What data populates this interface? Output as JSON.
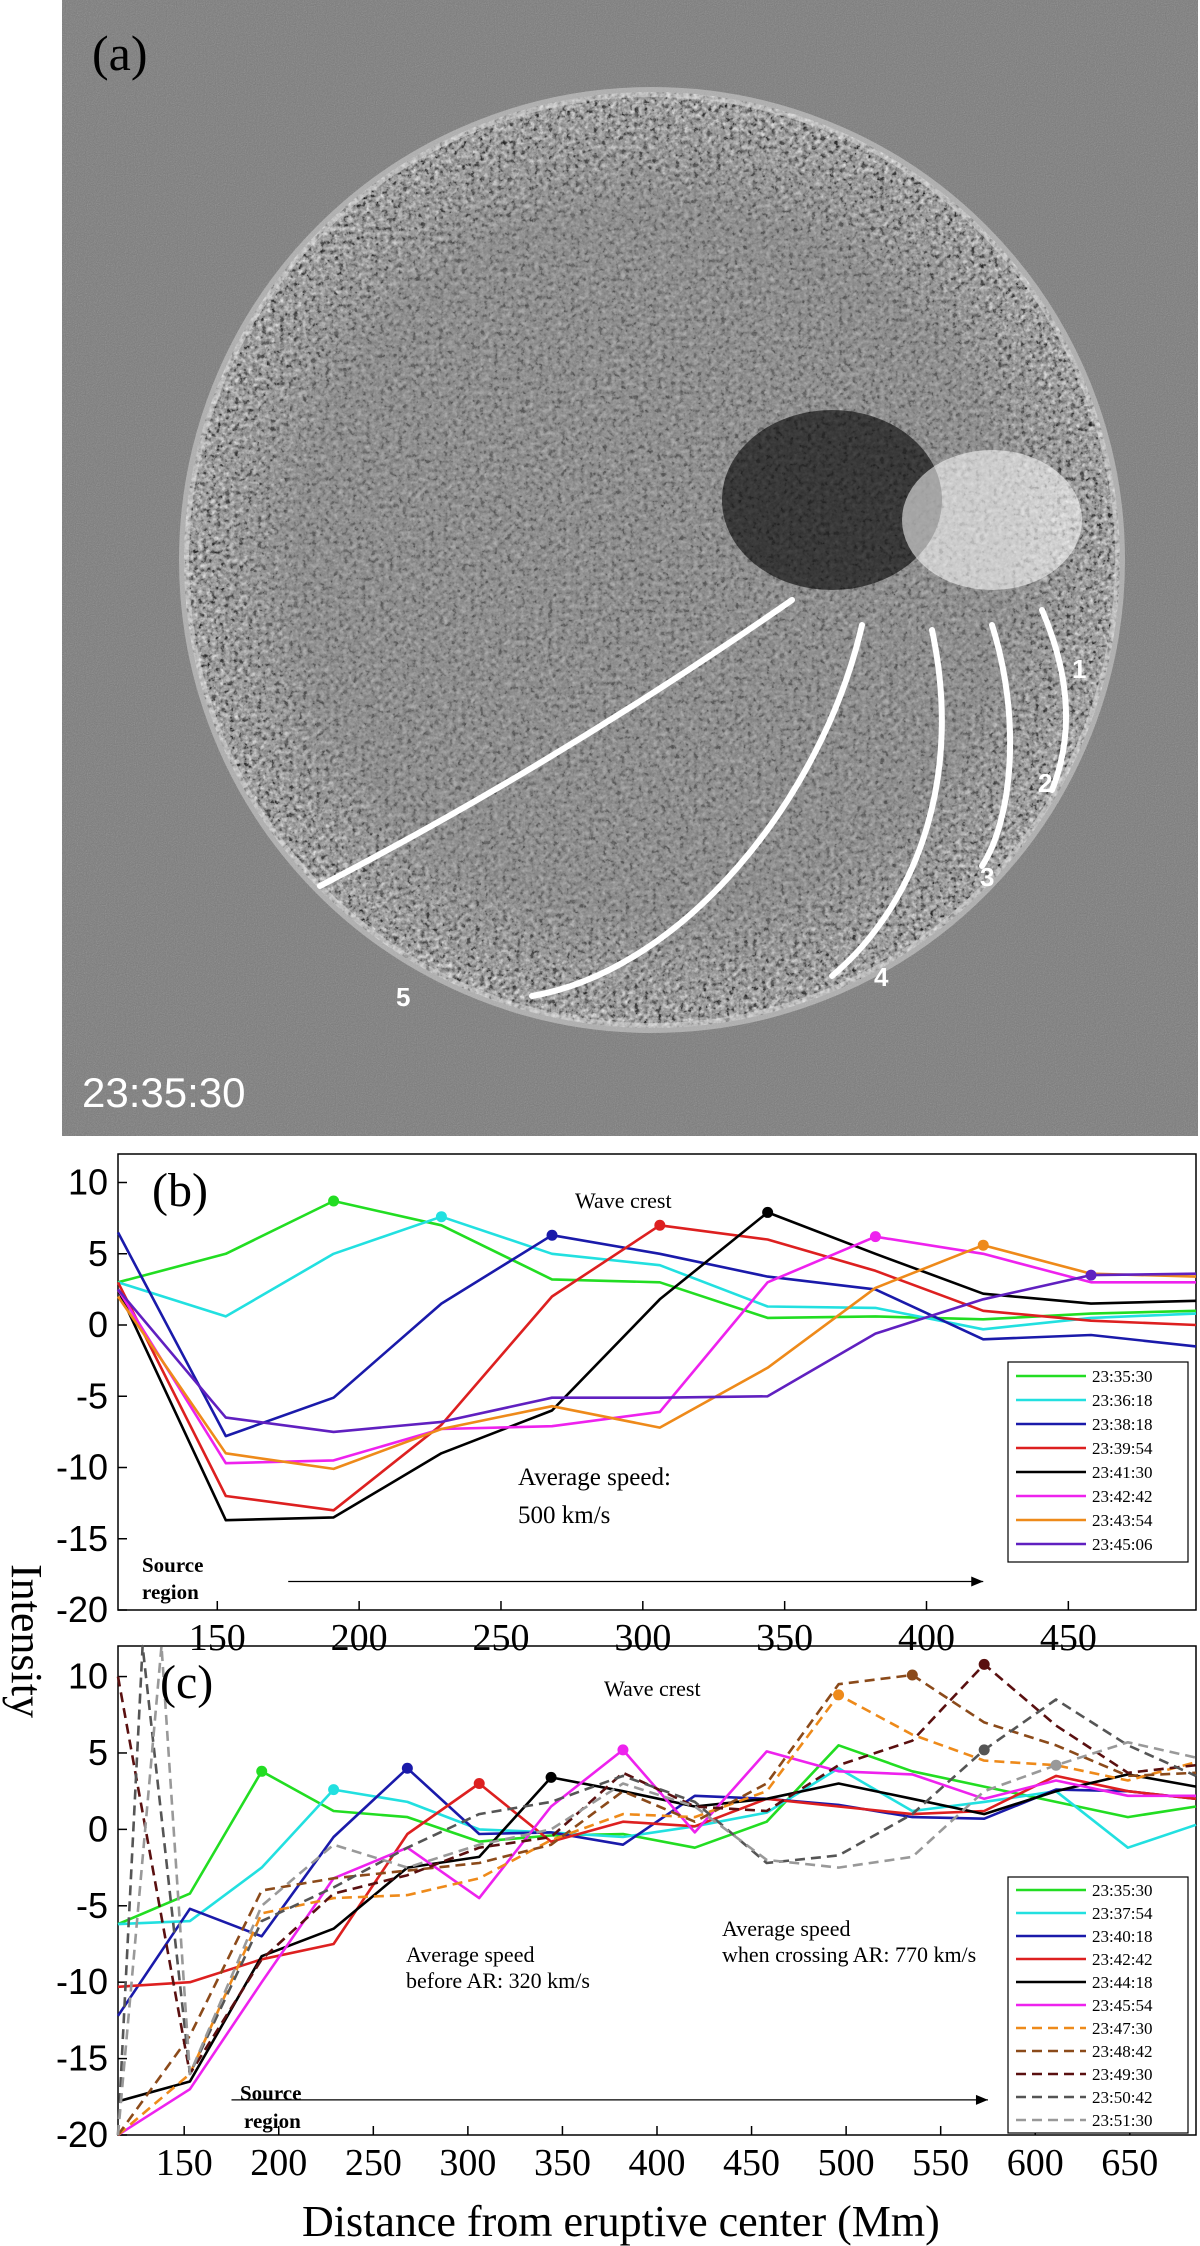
{
  "panel_a": {
    "label": "(a)",
    "timestamp": "23:35:30",
    "path_labels": [
      "1",
      "2",
      "3",
      "4",
      "5"
    ]
  },
  "shared": {
    "ylabel": "Intensity",
    "xlabel": "Distance from eruptive center (Mm)"
  },
  "chart_data": [
    {
      "panel": "(b)",
      "type": "line",
      "xlim": [
        115,
        495
      ],
      "ylim": [
        -20,
        12
      ],
      "xticks": [
        150,
        200,
        250,
        300,
        350,
        400,
        450
      ],
      "yticks": [
        10,
        5,
        0,
        -5,
        -10,
        -15,
        -20
      ],
      "annotations": {
        "wave_crest": "Wave crest",
        "speed_line1": "Average speed:",
        "speed_line2": "500 km/s",
        "source_line1": "Source",
        "source_line2": "region"
      },
      "arrow": {
        "x_start": 175,
        "x_end": 420,
        "y": -18
      },
      "series": [
        {
          "name": "23:35:30",
          "color": "#22dd22",
          "dash": false,
          "crest": 2,
          "x": [
            115,
            153,
            191,
            229,
            268,
            306,
            344,
            382,
            420,
            458,
            495
          ],
          "y": [
            3,
            5,
            8.7,
            7,
            3.2,
            3,
            0.5,
            0.6,
            0.4,
            0.8,
            1
          ]
        },
        {
          "name": "23:36:18",
          "color": "#22e0e0",
          "dash": false,
          "crest": 3,
          "x": [
            115,
            153,
            191,
            229,
            268,
            306,
            344,
            382,
            420,
            458,
            495
          ],
          "y": [
            3,
            0.6,
            5,
            7.6,
            5,
            4.2,
            1.3,
            1.2,
            -0.3,
            0.5,
            0.8
          ]
        },
        {
          "name": "23:38:18",
          "color": "#1a1aaa",
          "dash": false,
          "crest": 4,
          "x": [
            115,
            153,
            191,
            229,
            268,
            306,
            344,
            382,
            420,
            458,
            495
          ],
          "y": [
            6.5,
            -7.8,
            -5.1,
            1.5,
            6.3,
            5,
            3.4,
            2.5,
            -1,
            -0.7,
            -1.5
          ]
        },
        {
          "name": "23:39:54",
          "color": "#dd2020",
          "dash": false,
          "crest": 5,
          "x": [
            115,
            153,
            191,
            229,
            268,
            306,
            344,
            382,
            420,
            458,
            495
          ],
          "y": [
            3,
            -12,
            -13,
            -7,
            2,
            7,
            6,
            3.8,
            1,
            0.3,
            0
          ]
        },
        {
          "name": "23:41:30",
          "color": "#000000",
          "dash": false,
          "crest": 6,
          "x": [
            115,
            153,
            191,
            229,
            268,
            306,
            344,
            382,
            420,
            458,
            495
          ],
          "y": [
            2.5,
            -13.7,
            -13.5,
            -9,
            -6,
            1.8,
            7.9,
            5,
            2.2,
            1.5,
            1.7
          ]
        },
        {
          "name": "23:42:42",
          "color": "#ee22ee",
          "dash": false,
          "crest": 7,
          "x": [
            115,
            153,
            191,
            229,
            268,
            306,
            344,
            382,
            420,
            458,
            495
          ],
          "y": [
            2.5,
            -9.7,
            -9.5,
            -7.3,
            -7.1,
            -6.1,
            3,
            6.2,
            5,
            3,
            3
          ]
        },
        {
          "name": "23:43:54",
          "color": "#ee8a1a",
          "dash": false,
          "crest": 8,
          "x": [
            115,
            153,
            191,
            229,
            268,
            306,
            344,
            382,
            420,
            458,
            495
          ],
          "y": [
            2,
            -9,
            -10.1,
            -7.3,
            -5.7,
            -7.2,
            -3,
            2.6,
            5.6,
            3.6,
            3.4
          ]
        },
        {
          "name": "23:45:06",
          "color": "#6020c0",
          "dash": false,
          "crest": 9,
          "x": [
            115,
            153,
            191,
            229,
            268,
            306,
            344,
            382,
            420,
            458,
            495
          ],
          "y": [
            2.5,
            -6.5,
            -7.5,
            -6.8,
            -5.1,
            -5.1,
            -5,
            -0.6,
            1.8,
            3.5,
            3.6
          ]
        }
      ]
    },
    {
      "panel": "(c)",
      "type": "line",
      "xlim": [
        115,
        685
      ],
      "ylim": [
        -20,
        12
      ],
      "xticks": [
        150,
        200,
        250,
        300,
        350,
        400,
        450,
        500,
        550,
        600,
        650
      ],
      "yticks": [
        10,
        5,
        0,
        -5,
        -10,
        -15,
        -20
      ],
      "annotations": {
        "wave_crest": "Wave crest",
        "before_line1": "Average speed",
        "before_line2": "before AR: 320 km/s",
        "crossing_line1": "Average speed",
        "crossing_line2": "when crossing AR: 770 km/s",
        "source_line1": "Source",
        "source_line2": "region"
      },
      "arrow": {
        "x_start": 175,
        "x_end": 575,
        "y": -17.7
      },
      "series": [
        {
          "name": "23:35:30",
          "color": "#22dd22",
          "dash": false,
          "crest": 2,
          "x": [
            115,
            153,
            191,
            229,
            268,
            306,
            344,
            382,
            420,
            458,
            496,
            535,
            573,
            611,
            649,
            685
          ],
          "y": [
            -6.2,
            -4.2,
            3.8,
            1.2,
            0.8,
            -0.8,
            -0.4,
            -0.3,
            -1.2,
            0.5,
            5.5,
            3.8,
            2.8,
            1.8,
            0.8,
            1.5
          ]
        },
        {
          "name": "23:37:54",
          "color": "#22e0e0",
          "dash": false,
          "crest": 3,
          "x": [
            115,
            153,
            191,
            229,
            268,
            306,
            344,
            382,
            420,
            458,
            496,
            535,
            573,
            611,
            649,
            685
          ],
          "y": [
            -6.2,
            -6,
            -2.5,
            2.6,
            1.8,
            0,
            -0.2,
            -0.5,
            0.2,
            1.1,
            4,
            1.2,
            1.8,
            2.5,
            -1.2,
            0.3
          ]
        },
        {
          "name": "23:40:18",
          "color": "#1a1aaa",
          "dash": false,
          "crest": 4,
          "x": [
            115,
            153,
            191,
            229,
            268,
            306,
            344,
            382,
            420,
            458,
            496,
            535,
            573,
            611,
            649,
            685
          ],
          "y": [
            -12.2,
            -5.2,
            -7,
            -0.5,
            4,
            -0.3,
            -0.2,
            -1,
            2.2,
            2,
            1.6,
            0.8,
            0.7,
            2.6,
            2.5,
            2
          ]
        },
        {
          "name": "23:42:42",
          "color": "#dd2020",
          "dash": false,
          "crest": 5,
          "x": [
            115,
            153,
            191,
            229,
            268,
            306,
            344,
            382,
            420,
            458,
            496,
            535,
            573,
            611,
            649,
            685
          ],
          "y": [
            -10.3,
            -10,
            -8.5,
            -7.5,
            -0.3,
            3,
            -0.8,
            0.5,
            0.2,
            2,
            1.5,
            1,
            1.2,
            3.5,
            2.5,
            2
          ]
        },
        {
          "name": "23:44:18",
          "color": "#000000",
          "dash": false,
          "crest": 6,
          "x": [
            115,
            153,
            191,
            229,
            268,
            306,
            344,
            382,
            420,
            458,
            496,
            535,
            573,
            611,
            649,
            685
          ],
          "y": [
            -17.8,
            -16.5,
            -8.3,
            -6.5,
            -2.5,
            -1.8,
            3.4,
            2.5,
            1.5,
            2,
            3,
            2,
            1,
            2.5,
            3.6,
            2.8
          ]
        },
        {
          "name": "23:45:54",
          "color": "#ee22ee",
          "dash": false,
          "crest": 7,
          "x": [
            115,
            153,
            191,
            229,
            268,
            306,
            344,
            382,
            420,
            458,
            496,
            535,
            573,
            611,
            649,
            685
          ],
          "y": [
            -21,
            -17,
            -10,
            -3.2,
            -1.2,
            -4.5,
            1.5,
            5.2,
            -0.2,
            5.1,
            3.8,
            3.6,
            2,
            3.2,
            2.2,
            2.2
          ]
        },
        {
          "name": "23:47:30",
          "color": "#ee8a1a",
          "dash": true,
          "crest": 10,
          "x": [
            115,
            153,
            191,
            229,
            268,
            306,
            344,
            382,
            420,
            458,
            496,
            535,
            573,
            611,
            649,
            685
          ],
          "y": [
            -21,
            -16,
            -5.5,
            -4.5,
            -4.3,
            -3.2,
            -0.7,
            1,
            0.8,
            2.5,
            8.8,
            6.2,
            4.5,
            4.2,
            3.2,
            4.4
          ]
        },
        {
          "name": "23:48:42",
          "color": "#8b4a1a",
          "dash": true,
          "crest": 11,
          "x": [
            115,
            153,
            191,
            229,
            268,
            306,
            344,
            382,
            420,
            458,
            496,
            535,
            573,
            611,
            649,
            685
          ],
          "y": [
            -21,
            -13.5,
            -4,
            -3.2,
            -2.7,
            -2.2,
            -1,
            2.5,
            0.5,
            3,
            9.5,
            10.1,
            7,
            5.5,
            3.5,
            3.7
          ]
        },
        {
          "name": "23:49:30",
          "color": "#5a1010",
          "dash": true,
          "crest": 12,
          "x": [
            115,
            153,
            191,
            229,
            268,
            306,
            344,
            382,
            420,
            458,
            496,
            535,
            573,
            611,
            649,
            685
          ],
          "y": [
            10,
            -16,
            -8.5,
            -4.2,
            -3,
            -1.2,
            -0.5,
            3.7,
            1.5,
            1.2,
            4.2,
            5.8,
            10.8,
            6.8,
            3.7,
            4.2
          ]
        },
        {
          "name": "23:50:42",
          "color": "#555555",
          "dash": true,
          "crest": 13,
          "x": [
            115,
            128,
            153,
            191,
            229,
            268,
            306,
            344,
            382,
            420,
            458,
            496,
            535,
            573,
            611,
            649,
            685
          ],
          "y": [
            -21,
            12,
            -16,
            -6,
            -3.8,
            -1.2,
            1,
            1.8,
            3.5,
            1.8,
            -2.2,
            -1.7,
            1,
            5.2,
            8.5,
            5.5,
            3.5
          ]
        },
        {
          "name": "23:51:30",
          "color": "#999999",
          "dash": true,
          "crest": 14,
          "x": [
            115,
            138,
            153,
            191,
            229,
            268,
            306,
            344,
            382,
            420,
            458,
            496,
            535,
            573,
            611,
            649,
            685
          ],
          "y": [
            -21,
            12,
            -16,
            -5,
            -1,
            -2.5,
            -1,
            0,
            3,
            1.5,
            -2,
            -2.5,
            -1.8,
            2.5,
            4.2,
            5.7,
            4.7
          ]
        }
      ]
    }
  ]
}
